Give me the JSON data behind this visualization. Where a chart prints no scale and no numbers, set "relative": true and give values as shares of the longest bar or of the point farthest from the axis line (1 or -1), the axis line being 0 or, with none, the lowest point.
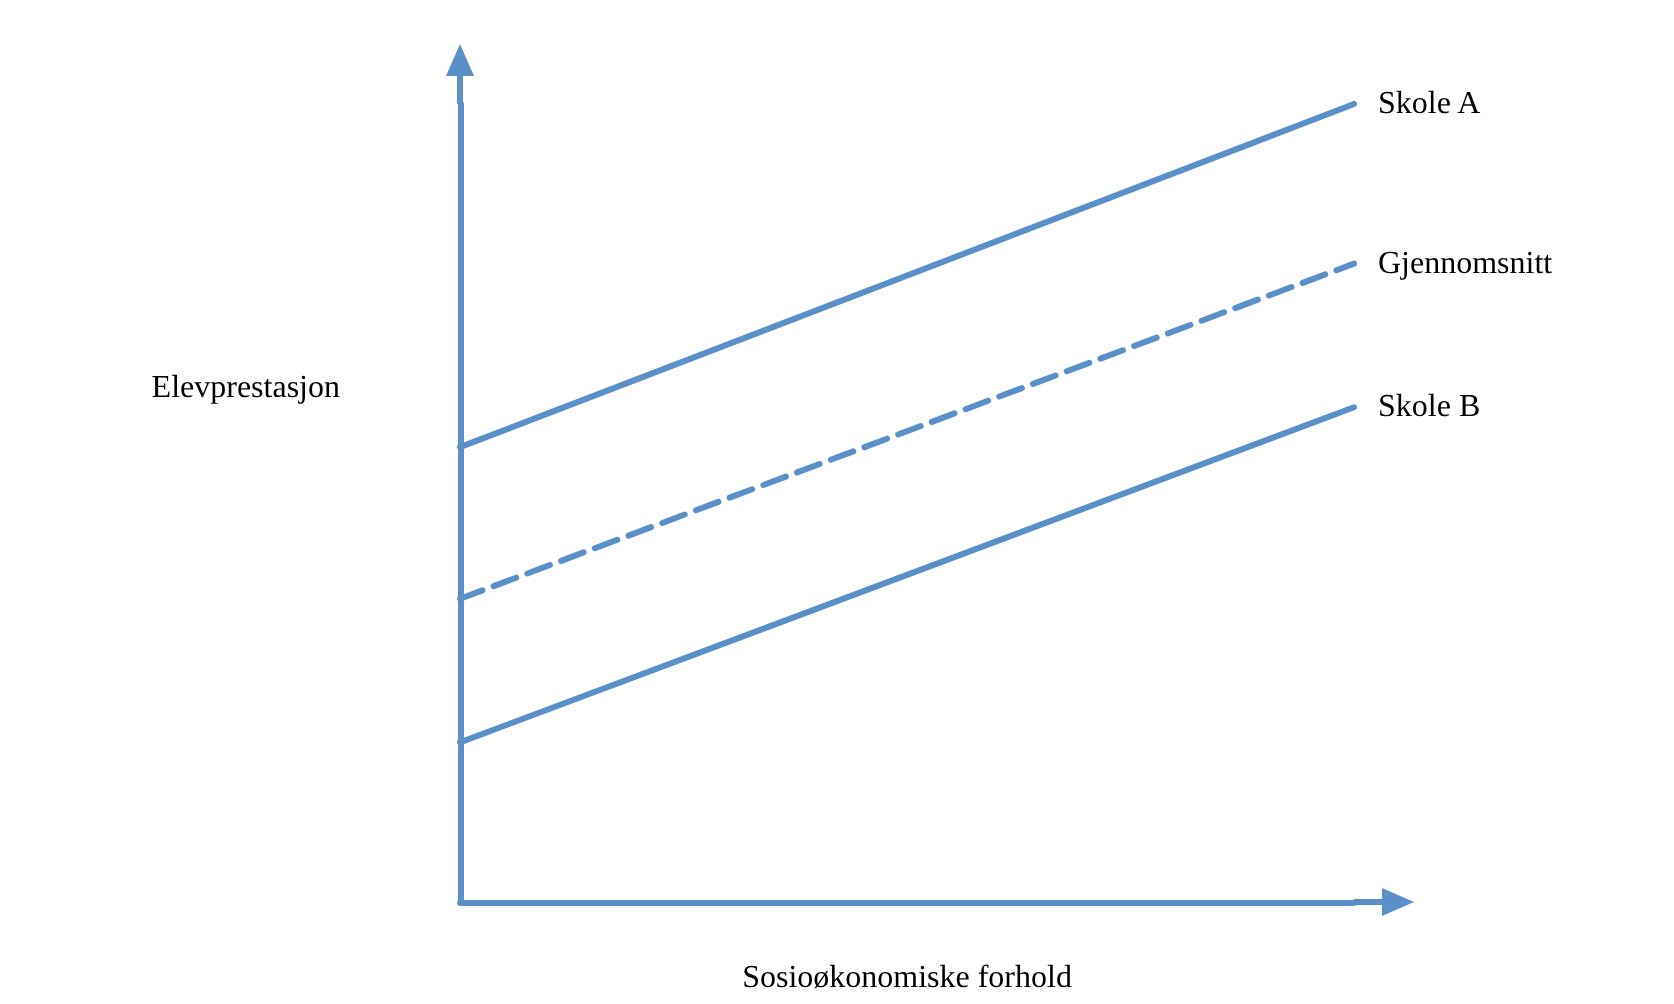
{
  "chart_data": {
    "type": "line",
    "relative": true,
    "xlabel": "Sosioøkonomiske forhold",
    "ylabel": "Elevprestasjon",
    "categories": [
      null,
      null
    ],
    "marker": "none",
    "series": [
      {
        "name": "Skole A",
        "color": "#5b8fc7",
        "line_style": "solid",
        "values": [
          0.57,
          1
        ]
      },
      {
        "name": "Gjennomsnitt",
        "color": "#5b8fc7",
        "line_style": "dashed",
        "values": [
          0.38,
          0.8
        ]
      },
      {
        "name": "Skole B",
        "color": "#5b8fc7",
        "line_style": "solid",
        "values": [
          0.2,
          0.62
        ]
      }
    ]
  }
}
